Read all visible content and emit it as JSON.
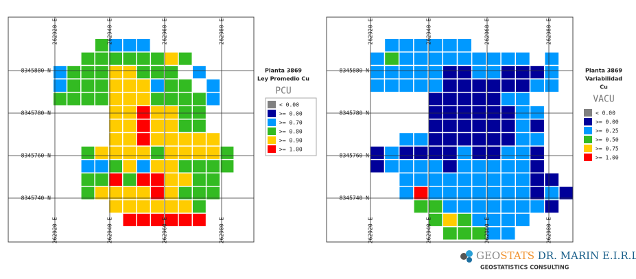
{
  "maps": [
    {
      "title": [
        "Planta 3869",
        "Ley Promedio Cu"
      ],
      "legend_title": "PCU",
      "x_labels_top": [
        "262920 E",
        "262940 E",
        "262960 E",
        "262980 E"
      ],
      "x_labels_bottom": [
        "262920 E",
        "262940 E",
        "262960 E",
        "262980 E"
      ],
      "y_labels": [
        "8345880 N",
        "8345780 N",
        "8345760 N",
        "8345740 N"
      ],
      "legend": [
        {
          "label": "<  0.00",
          "color": "#808080"
        },
        {
          "label": ">= 0.00",
          "color": "#000099"
        },
        {
          "label": ">= 0.70",
          "color": "#0099ff"
        },
        {
          "label": ">= 0.80",
          "color": "#33bb22"
        },
        {
          "label": ">= 0.90",
          "color": "#ffcc00"
        },
        {
          "label": ">= 1.00",
          "color": "#ff0000"
        }
      ],
      "rows": [
        "...3222......",
        "..33333343...",
        "233344333.2..",
        "2333444233.2.",
        "333344433332.",
        "....4454433..",
        "....4454433..",
        "....44544444.",
        "..34444344443",
        "..22342443333",
        "..3353554433.",
        "..3444454333.",
        "....4444443..",
        ".....555555.."
      ]
    },
    {
      "title": [
        "Planta 3869",
        "Variabilidad",
        "Cu"
      ],
      "legend_title": "VACU",
      "x_labels_top": [
        "262920 E",
        "262940 E",
        "262960 E",
        "262980 E"
      ],
      "x_labels_bottom": [
        "262920 E",
        "262940 E",
        "262960 E",
        "262980 E"
      ],
      "y_labels": [
        "8345880 N",
        "8345780 N",
        "8345760 N",
        "8345740 N"
      ],
      "legend": [
        {
          "label": "<  0.00",
          "color": "#808080"
        },
        {
          "label": ">= 0.00",
          "color": "#000099"
        },
        {
          "label": ">= 0.25",
          "color": "#0099ff"
        },
        {
          "label": ">= 0.50",
          "color": "#33bb22"
        },
        {
          "label": ">= 0.75",
          "color": "#ffcc00"
        },
        {
          "label": ">= 1.00",
          "color": "#ff0000"
        }
      ],
      "rows": [
        ".222222.......",
        "23222222222.2.",
        "2222211221112.",
        "2222211111122.",
        "....1111122...",
        "....11111122..",
        "....11111121..",
        "..2211111122..",
        "121111211221..",
        "122221222221..",
        "..22222222211.",
        "..252222222121",
        "...3322222221.",
        "....3432222...",
        ".....33322...."
      ]
    }
  ],
  "logo": {
    "name_a": "GEO",
    "name_b": "STATS",
    "name_c": " DR. MARIN E.I.R.L.",
    "tagline": "GEOSTATISTICS CONSULTING"
  }
}
